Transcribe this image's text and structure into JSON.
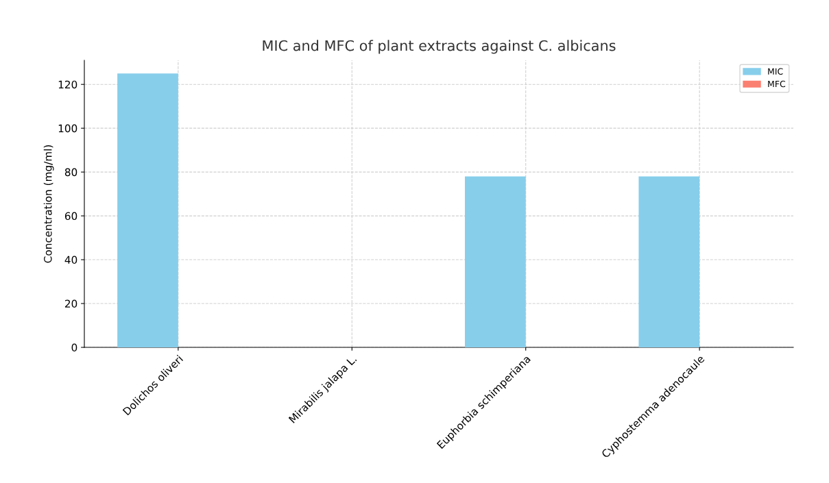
{
  "chart_data": {
    "type": "bar",
    "title": "MIC and MFC of plant extracts against C. albicans",
    "ylabel": "Concentration (mg/ml)",
    "categories": [
      "Dolichos oliveri",
      "Mirabilis jalapa L.",
      "Euphorbia schimperiana",
      "Cyphostemma adenocaule"
    ],
    "series": [
      {
        "name": "MIC",
        "color": "#87ceeb",
        "values": [
          125,
          0,
          78,
          78
        ]
      },
      {
        "name": "MFC",
        "color": "#fa8072",
        "values": [
          0,
          0,
          0,
          0
        ]
      }
    ],
    "ylim": [
      0,
      131
    ],
    "yticks": [
      0,
      20,
      40,
      60,
      80,
      100,
      120
    ],
    "grid": true,
    "legend": "top right"
  }
}
